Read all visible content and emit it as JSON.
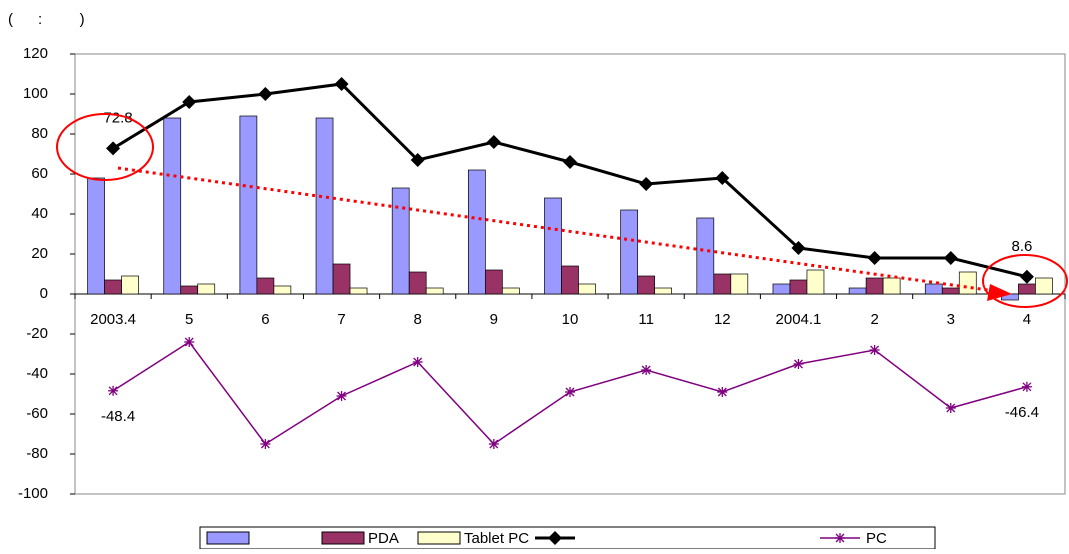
{
  "chart_data": {
    "type": "bar_line",
    "title": "(      :         )",
    "categories": [
      "2003.4",
      "5",
      "6",
      "7",
      "8",
      "9",
      "10",
      "11",
      "12",
      "2004.1",
      "2",
      "3",
      "4"
    ],
    "series": [
      {
        "name": null,
        "kind": "bar",
        "color": "#9999ff",
        "values": [
          58,
          88,
          89,
          88,
          53,
          62,
          48,
          42,
          38,
          5,
          3,
          5,
          -3
        ]
      },
      {
        "name": "PDA",
        "kind": "bar",
        "color": "#993366",
        "values": [
          7,
          4,
          8,
          15,
          11,
          12,
          14,
          9,
          10,
          7,
          8,
          3,
          5
        ]
      },
      {
        "name": "Tablet PC",
        "kind": "bar",
        "color": "#ffffcc",
        "values": [
          9,
          5,
          4,
          3,
          3,
          3,
          5,
          3,
          10,
          12,
          8,
          11,
          8
        ]
      },
      {
        "name": null,
        "kind": "line",
        "marker": "diamond",
        "color": "#000000",
        "values": [
          72.8,
          96,
          100,
          105,
          67,
          76,
          66,
          55,
          58,
          23,
          18,
          18,
          8.6
        ],
        "data_labels": [
          0,
          12
        ]
      },
      {
        "name": "PC",
        "kind": "line",
        "marker": "star",
        "color": "#800080",
        "values": [
          -48.4,
          -24,
          -75,
          -51,
          -34,
          -75,
          -49,
          -38,
          -49,
          -35,
          -28,
          -57,
          -46.4
        ],
        "data_labels": [
          0,
          12
        ]
      }
    ],
    "ylim": [
      -100,
      120
    ],
    "yticks": [
      -100,
      -80,
      -60,
      -40,
      -20,
      0,
      20,
      40,
      60,
      80,
      100,
      120
    ],
    "grid": false
  }
}
